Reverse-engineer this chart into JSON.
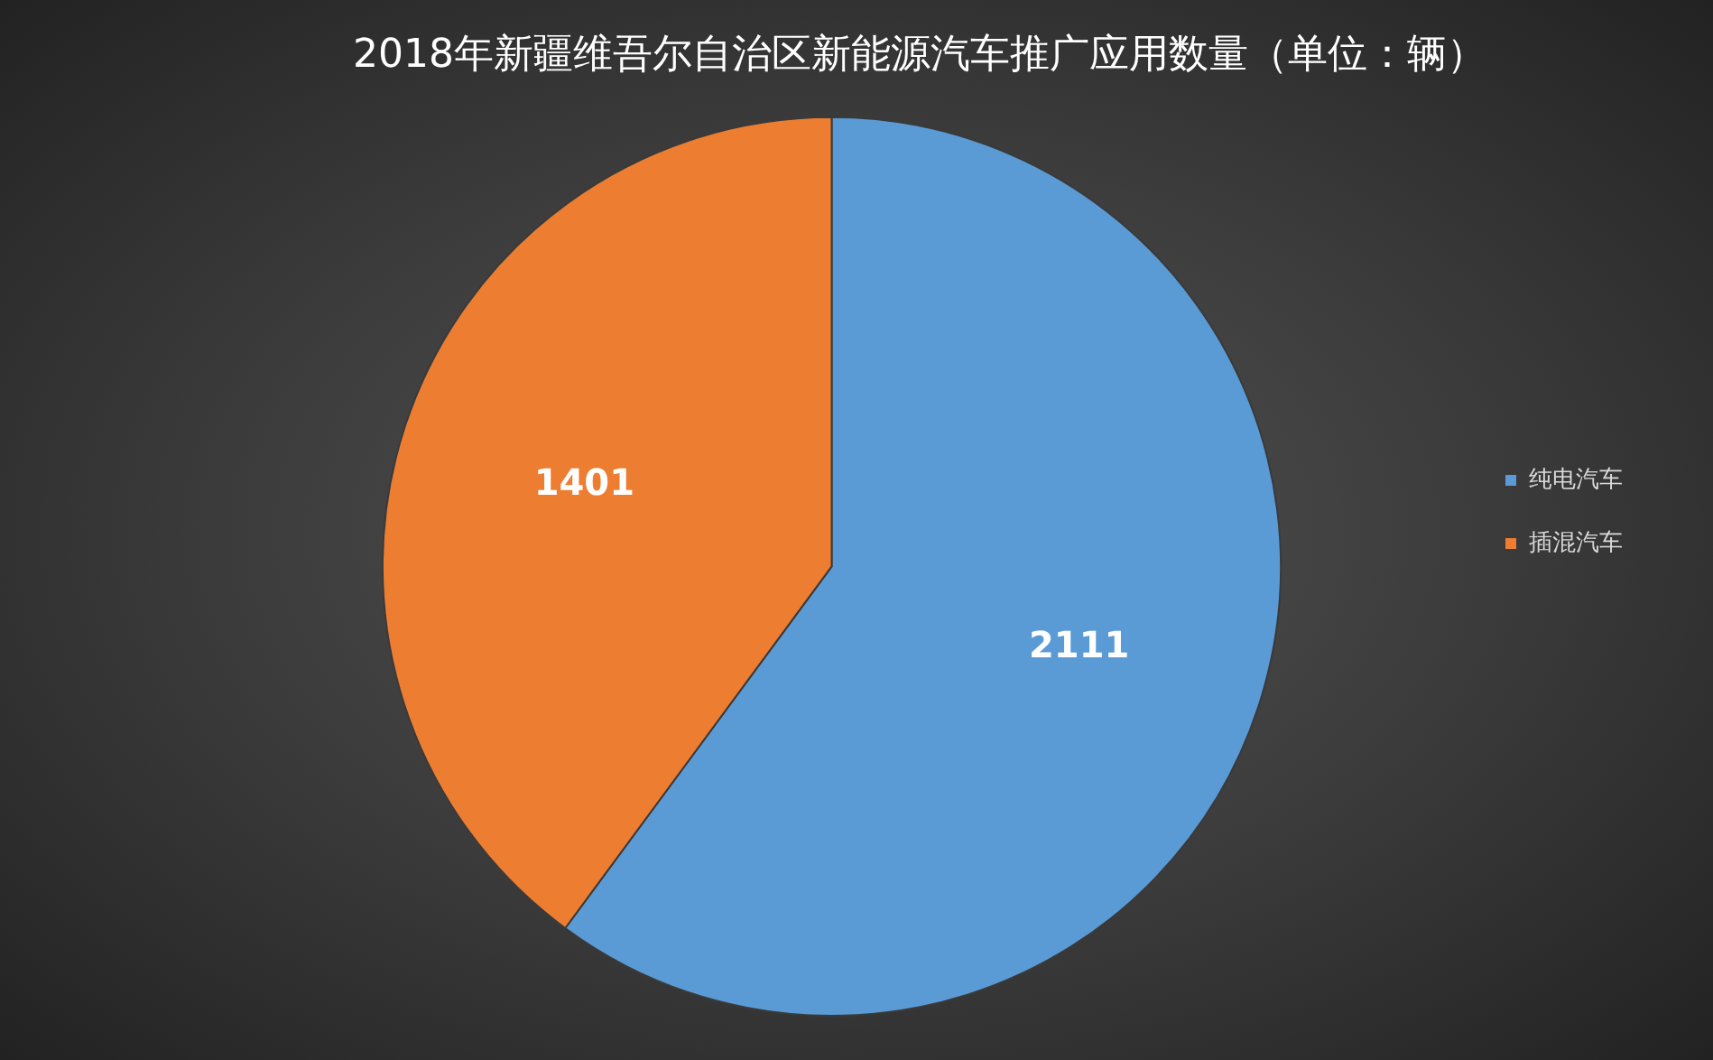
{
  "chart_data": {
    "type": "pie",
    "title": "2018年新疆维吾尔自治区新能源汽车推广应用数量（单位：辆）",
    "categories": [
      "纯电汽车",
      "插混汽车"
    ],
    "values": [
      2111,
      1401
    ],
    "colors": [
      "#5b9bd5",
      "#ed7d31"
    ],
    "data_labels": true,
    "legend": "right"
  }
}
